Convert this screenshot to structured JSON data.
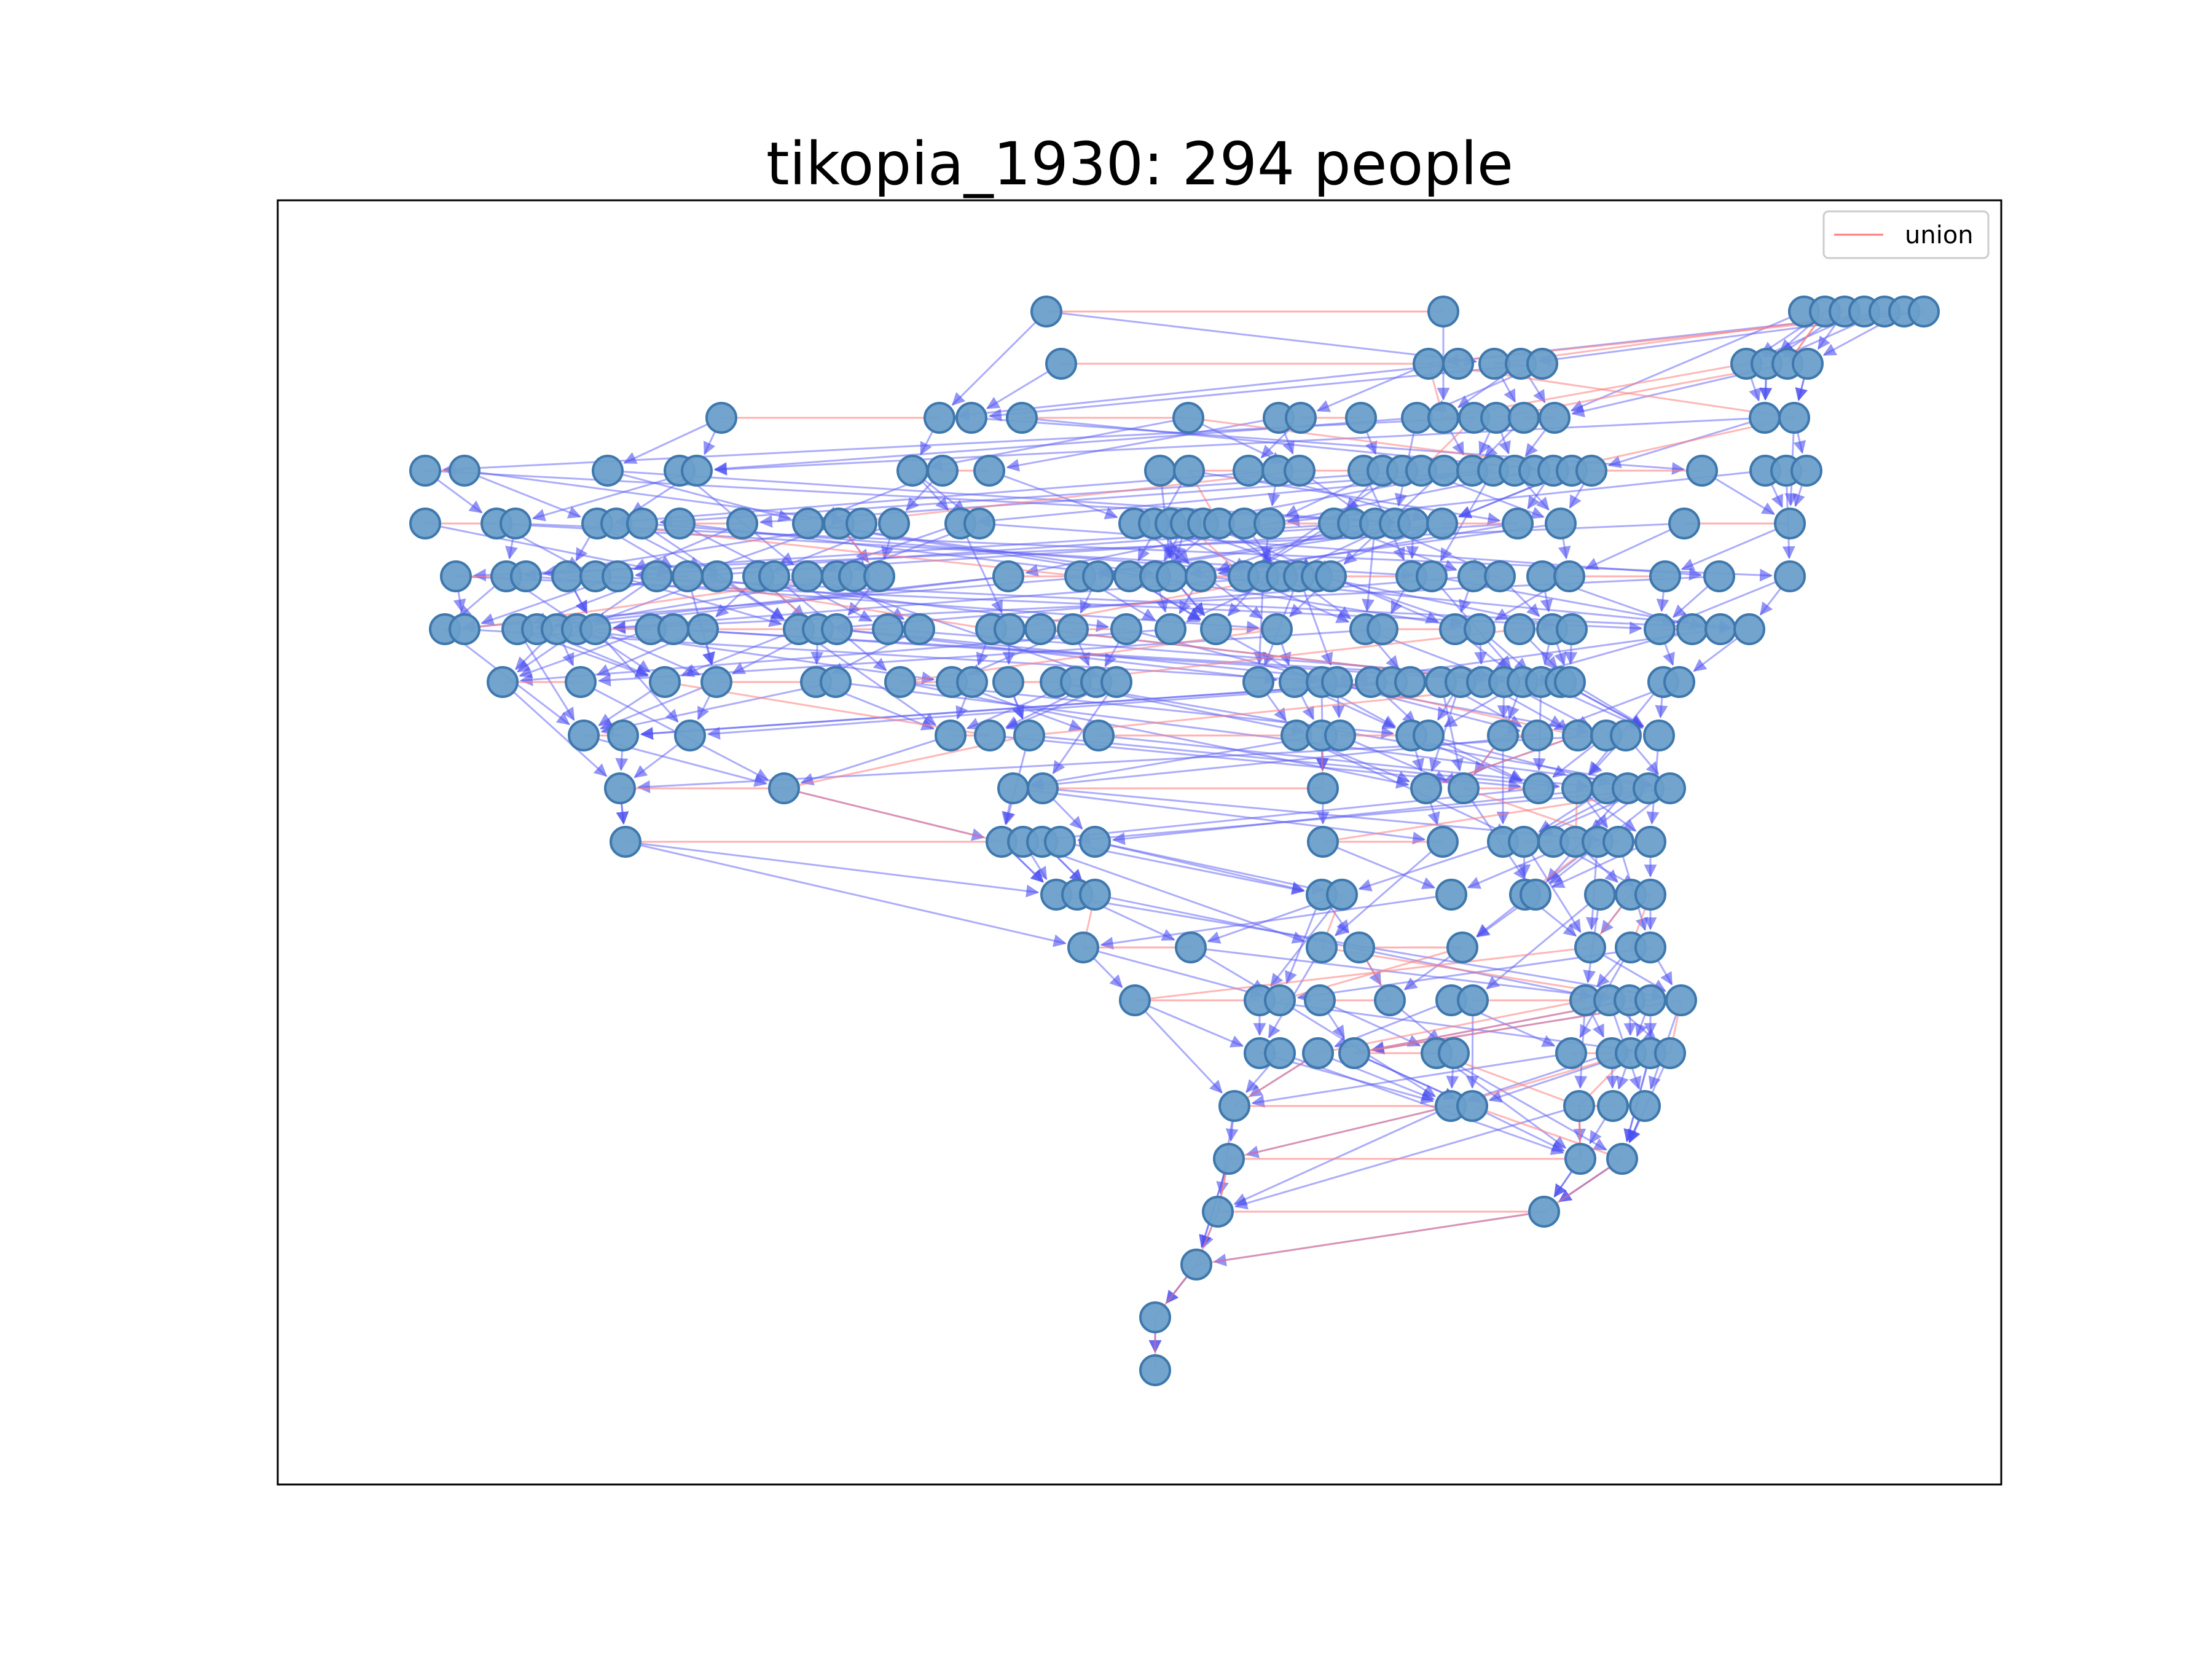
{
  "title": "tikopia_1930: 294 people",
  "legend": {
    "placement": "upper right",
    "entries": [
      {
        "label": "union",
        "color": "#ff9a9a",
        "kind": "line"
      }
    ]
  },
  "colors": {
    "node_fill": "#6a9fcb",
    "node_stroke": "#3f78ad",
    "parent_child_edge": "#5a5cf5",
    "union_edge": "#ff7b7b"
  },
  "axes": {
    "ticks_visible": false,
    "grid": false,
    "frame": true
  },
  "chart_data": {
    "type": "network",
    "title": "tikopia_1930: 294 people",
    "node_count": 294,
    "edge_types": [
      "parent-child (directed, arrowed)",
      "union (undirected)"
    ],
    "legend_entries": [
      "union"
    ]
  }
}
